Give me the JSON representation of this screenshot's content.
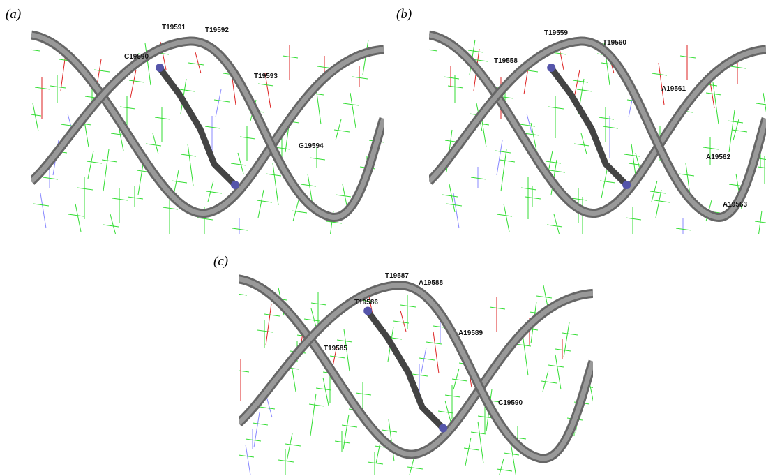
{
  "panels": [
    {
      "label": "(a)",
      "residues": [
        "T19591",
        "T19592",
        "C19590",
        "T19593",
        "G19594"
      ]
    },
    {
      "label": "(b)",
      "residues": [
        "T19559",
        "T19560",
        "T19558",
        "A19561",
        "A19562",
        "A19563"
      ]
    },
    {
      "label": "(c)",
      "residues": [
        "T19587",
        "A19588",
        "T19586",
        "A19589",
        "T19585",
        "C19590"
      ]
    }
  ]
}
